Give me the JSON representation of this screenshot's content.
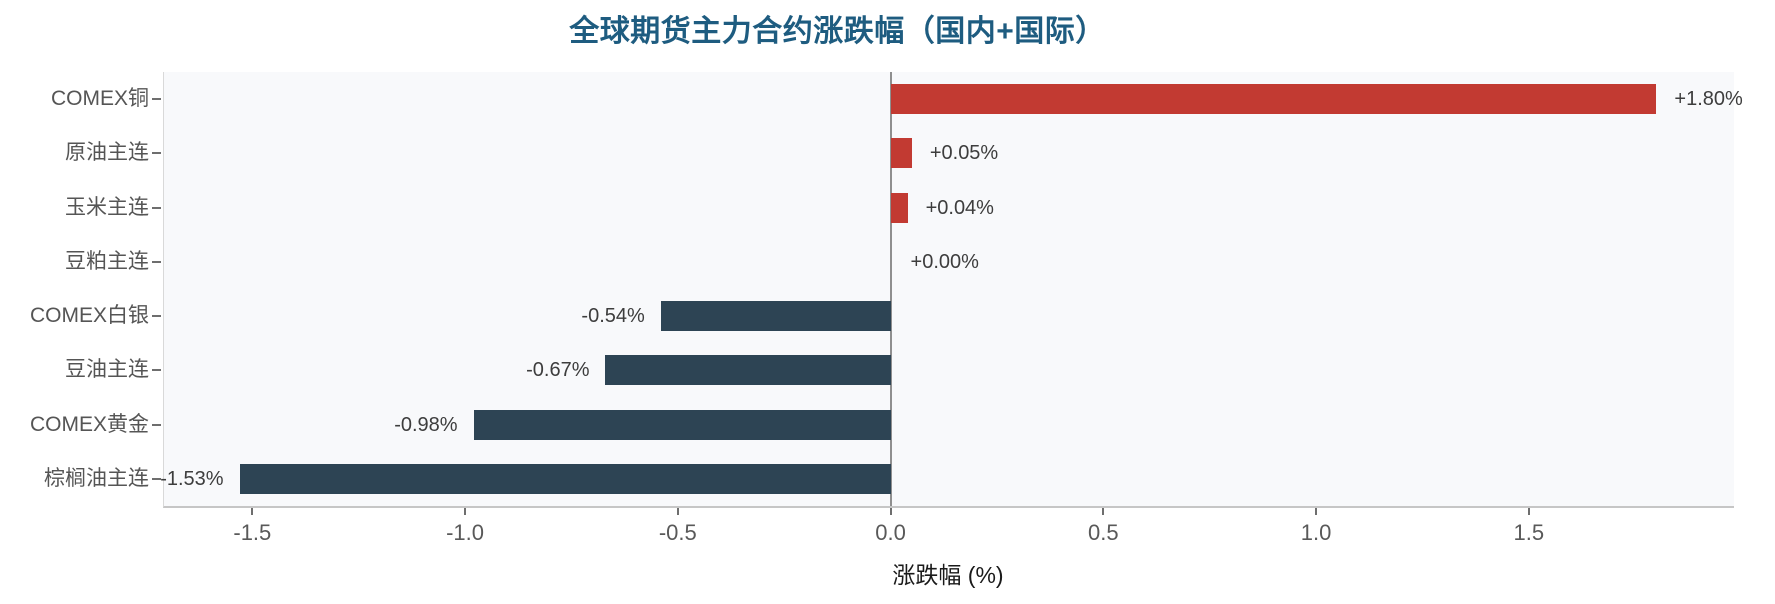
{
  "chart_data": {
    "type": "bar",
    "orientation": "horizontal",
    "title": "全球期货主力合约涨跌幅（国内+国际）",
    "xlabel": "涨跌幅 (%)",
    "categories": [
      "COMEX铜",
      "原油主连",
      "玉米主连",
      "豆粕主连",
      "COMEX白银",
      "豆油主连",
      "COMEX黄金",
      "棕榈油主连"
    ],
    "values": [
      1.8,
      0.05,
      0.04,
      0.0,
      -0.54,
      -0.67,
      -0.98,
      -1.53
    ],
    "bar_labels": [
      "+1.80%",
      "+0.05%",
      "+0.04%",
      "+0.00%",
      "-0.54%",
      "-0.67%",
      "-0.98%",
      "-1.53%"
    ],
    "x_ticks": [
      -1.5,
      -1.0,
      -0.5,
      0.0,
      0.5,
      1.0,
      1.5
    ],
    "x_tick_labels": [
      "-1.5",
      "-1.0",
      "-0.5",
      "0.0",
      "0.5",
      "1.0",
      "1.5"
    ],
    "xlim": [
      -1.71,
      1.98
    ],
    "grid": "off",
    "legend": "none",
    "colors": {
      "positive_bar": "#c23a32",
      "negative_bar": "#2d4454",
      "title": "#1e5c80",
      "plot_background": "#f8f9fb",
      "zero_line": "#8f8f8f",
      "tick_mark": "#6e6e6e",
      "tick_label": "#595959",
      "category_label": "#555555",
      "bar_label": "#3d3d3d",
      "x_axis_label": "#1a1a1a"
    }
  }
}
